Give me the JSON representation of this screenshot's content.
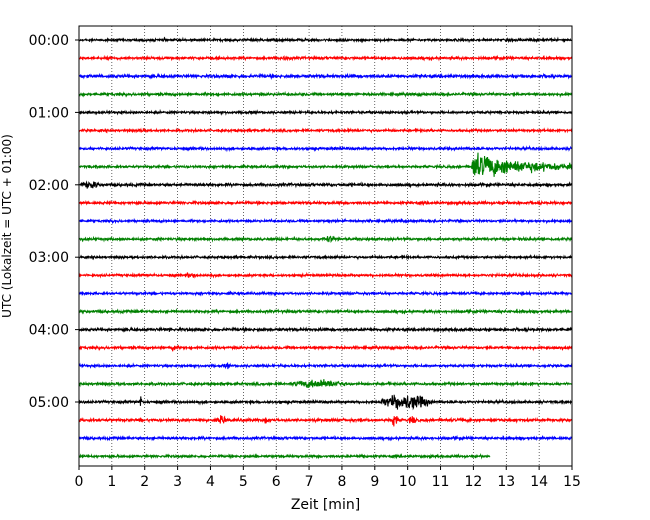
{
  "chart_data": {
    "type": "line",
    "subtype": "seismic-helicorder",
    "xlabel": "Zeit  [min]",
    "ylabel": "UTC (Lokalzeit = UTC + 01:00)",
    "xlim": [
      0,
      15
    ],
    "x_ticks": [
      "0",
      "1",
      "2",
      "3",
      "4",
      "5",
      "6",
      "7",
      "8",
      "9",
      "10",
      "11",
      "12",
      "13",
      "14",
      "15"
    ],
    "grid": "vertical dotted at each minute",
    "y_tick_labels": [
      {
        "label": "00:00",
        "row": 0
      },
      {
        "label": "01:00",
        "row": 4
      },
      {
        "label": "02:00",
        "row": 8
      },
      {
        "label": "03:00",
        "row": 12
      },
      {
        "label": "04:00",
        "row": 16
      },
      {
        "label": "05:00",
        "row": 20
      }
    ],
    "row_minutes": 15,
    "trace_color_cycle": [
      "#000000",
      "#ff0000",
      "#0000ff",
      "#008000"
    ],
    "row_count": 24,
    "rows": [
      {
        "row": 0,
        "amp": 1.0,
        "end": 15,
        "events": []
      },
      {
        "row": 1,
        "amp": 1.1,
        "end": 15,
        "events": [
          {
            "t": 6.0,
            "dur": 0.6,
            "amp": 2.0
          }
        ]
      },
      {
        "row": 2,
        "amp": 1.3,
        "end": 15,
        "events": []
      },
      {
        "row": 3,
        "amp": 1.1,
        "end": 15,
        "events": []
      },
      {
        "row": 4,
        "amp": 1.0,
        "end": 15,
        "events": []
      },
      {
        "row": 5,
        "amp": 1.0,
        "end": 15,
        "events": [
          {
            "t": 1.8,
            "dur": 0.2,
            "amp": 2.5
          }
        ]
      },
      {
        "row": 6,
        "amp": 1.1,
        "end": 15,
        "events": []
      },
      {
        "row": 7,
        "amp": 1.0,
        "end": 15,
        "events": [
          {
            "t": 11.95,
            "dur": 3.05,
            "amp": 11.0,
            "decay": true
          }
        ]
      },
      {
        "row": 8,
        "amp": 1.2,
        "end": 15,
        "events": [
          {
            "t": 0.0,
            "dur": 0.7,
            "amp": 4.0
          }
        ]
      },
      {
        "row": 9,
        "amp": 1.1,
        "end": 15,
        "events": []
      },
      {
        "row": 10,
        "amp": 1.0,
        "end": 15,
        "events": []
      },
      {
        "row": 11,
        "amp": 1.1,
        "end": 15,
        "events": [
          {
            "t": 7.3,
            "dur": 0.6,
            "amp": 3.0
          }
        ]
      },
      {
        "row": 12,
        "amp": 1.0,
        "end": 15,
        "events": []
      },
      {
        "row": 13,
        "amp": 1.0,
        "end": 15,
        "events": [
          {
            "t": 3.1,
            "dur": 0.6,
            "amp": 2.5
          }
        ]
      },
      {
        "row": 14,
        "amp": 1.0,
        "end": 15,
        "events": []
      },
      {
        "row": 15,
        "amp": 1.1,
        "end": 15,
        "events": []
      },
      {
        "row": 16,
        "amp": 1.2,
        "end": 15,
        "events": [
          {
            "t": 2.6,
            "dur": 0.3,
            "amp": 2.5
          }
        ]
      },
      {
        "row": 17,
        "amp": 1.1,
        "end": 15,
        "events": [
          {
            "t": 2.8,
            "dur": 0.15,
            "amp": 7.0
          }
        ]
      },
      {
        "row": 18,
        "amp": 1.0,
        "end": 15,
        "events": [
          {
            "t": 4.4,
            "dur": 0.2,
            "amp": 3.0
          }
        ]
      },
      {
        "row": 19,
        "amp": 1.1,
        "end": 15,
        "events": [
          {
            "t": 6.2,
            "dur": 2.2,
            "amp": 4.0
          }
        ]
      },
      {
        "row": 20,
        "amp": 1.1,
        "end": 15,
        "events": [
          {
            "t": 1.8,
            "dur": 0.15,
            "amp": 5.0
          },
          {
            "t": 9.0,
            "dur": 1.9,
            "amp": 7.0
          }
        ]
      },
      {
        "row": 21,
        "amp": 1.2,
        "end": 15,
        "events": [
          {
            "t": 4.2,
            "dur": 0.3,
            "amp": 5.0
          },
          {
            "t": 5.6,
            "dur": 0.2,
            "amp": 4.0
          },
          {
            "t": 9.5,
            "dur": 0.2,
            "amp": 9.0
          },
          {
            "t": 10.0,
            "dur": 0.3,
            "amp": 4.0
          }
        ]
      },
      {
        "row": 22,
        "amp": 1.1,
        "end": 15,
        "events": []
      },
      {
        "row": 23,
        "amp": 1.0,
        "end": 12.5,
        "events": [
          {
            "t": 8.5,
            "dur": 0.3,
            "amp": 2.5
          }
        ]
      }
    ]
  }
}
